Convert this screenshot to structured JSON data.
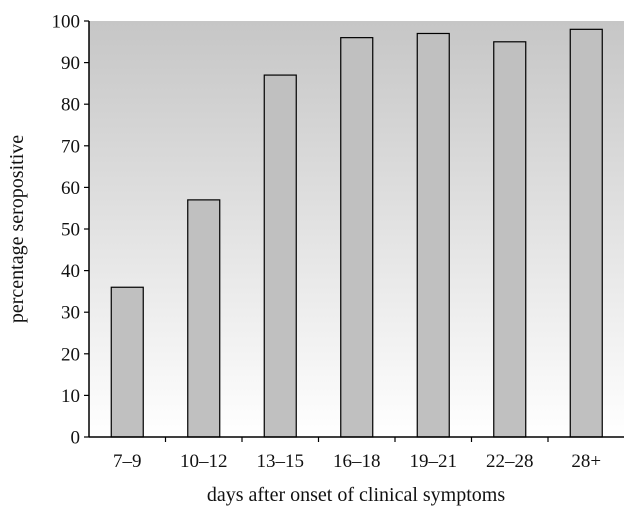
{
  "chart_data": {
    "type": "bar",
    "title": "",
    "xlabel": "days after onset of clinical symptoms",
    "ylabel": "percentage seropositive",
    "categories": [
      "7–9",
      "10–12",
      "13–15",
      "16–18",
      "19–21",
      "22–28",
      "28+"
    ],
    "values": [
      36,
      57,
      87,
      96,
      97,
      95,
      98
    ],
    "ylim": [
      0,
      100
    ],
    "yticks": [
      0,
      10,
      20,
      30,
      40,
      50,
      60,
      70,
      80,
      90,
      100
    ],
    "grid": false,
    "legend": "none",
    "colors": {
      "bar_fill": "#c0c0c0",
      "bar_stroke": "#000000",
      "plot_gradient_top": "#c6c6c6",
      "plot_gradient_bottom": "#ffffff",
      "axis": "#000000",
      "text": "#111111"
    }
  }
}
